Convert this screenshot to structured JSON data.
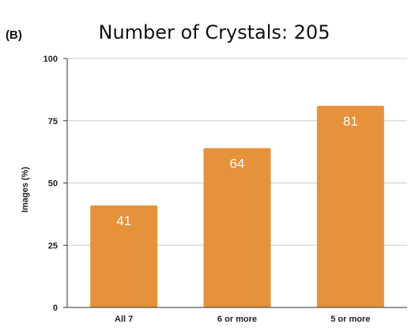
{
  "panel_label": "(B)",
  "chart_data": {
    "type": "bar",
    "title": "Number of Crystals: 205",
    "xlabel": "",
    "ylabel": "Images (%)",
    "categories": [
      "All 7",
      "6 or more",
      "5 or more"
    ],
    "values": [
      41,
      64,
      81
    ],
    "data_labels": [
      "41",
      "64",
      "81"
    ],
    "ylim": [
      0,
      100
    ],
    "yticks": [
      0,
      25,
      50,
      75,
      100
    ],
    "grid": true,
    "legend": "none",
    "bar_color": "#E6923A",
    "grid_color": "#CCCCCC",
    "axis_color": "#333333"
  }
}
